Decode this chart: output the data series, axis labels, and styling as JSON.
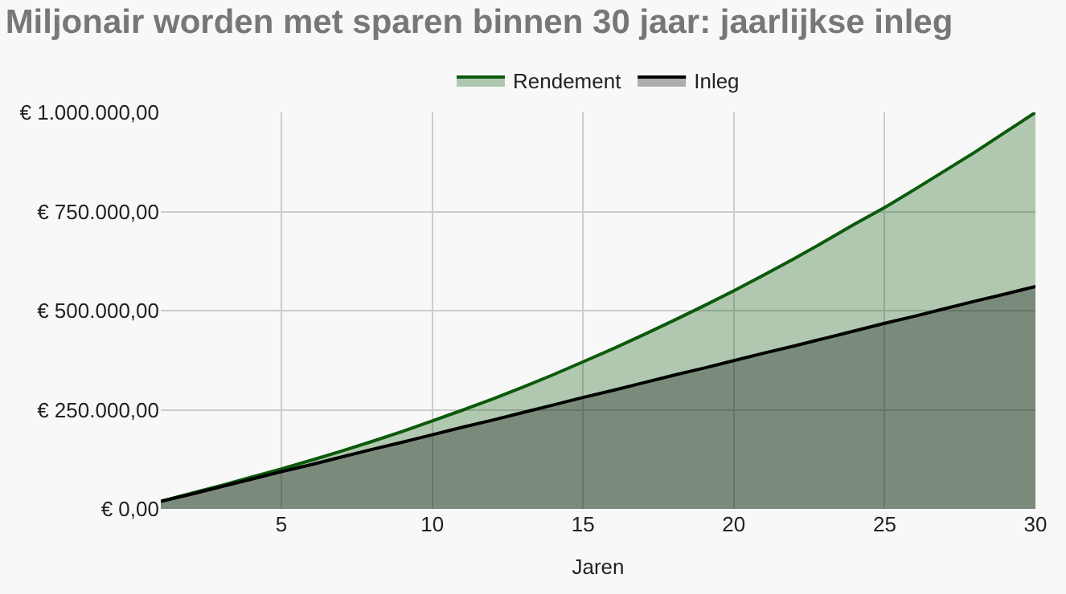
{
  "chart_data": {
    "type": "area",
    "title": "Miljonair worden met sparen binnen 30 jaar: jaarlijkse inleg",
    "xlabel": "Jaren",
    "x": [
      1,
      2,
      3,
      4,
      5,
      6,
      7,
      8,
      9,
      10,
      11,
      12,
      13,
      14,
      15,
      16,
      17,
      18,
      19,
      20,
      21,
      22,
      23,
      24,
      25,
      26,
      27,
      28,
      29,
      30
    ],
    "series": [
      {
        "name": "Rendement",
        "color": "#0b5a0b",
        "values": [
          19000,
          39000,
          59000,
          80000,
          101000,
          123000,
          146000,
          170000,
          195000,
          222000,
          249000,
          277000,
          307000,
          338000,
          371000,
          404000,
          439000,
          475000,
          512000,
          550000,
          590000,
          631000,
          674000,
          718000,
          760000,
          806000,
          853000,
          900000,
          950000,
          1000000
        ]
      },
      {
        "name": "Inleg",
        "color": "#000000",
        "values": [
          19000,
          37000,
          56000,
          75000,
          94000,
          112000,
          131000,
          150000,
          168000,
          187000,
          206000,
          224000,
          243000,
          262000,
          281000,
          299000,
          318000,
          337000,
          355000,
          374000,
          393000,
          411000,
          430000,
          449000,
          468000,
          486000,
          505000,
          524000,
          542000,
          561000
        ]
      }
    ],
    "xlim": [
      1,
      30
    ],
    "xticks": [
      5,
      10,
      15,
      20,
      25,
      30
    ],
    "ylim": [
      0,
      1000000
    ],
    "yticks": [
      {
        "value": 0,
        "label": "€ 0,00"
      },
      {
        "value": 250000,
        "label": "€ 250.000,00"
      },
      {
        "value": 500000,
        "label": "€ 500.000,00"
      },
      {
        "value": 750000,
        "label": "€ 750.000,00"
      },
      {
        "value": 1000000,
        "label": "€ 1.000.000,00"
      }
    ],
    "grid": true,
    "legend": "top"
  }
}
